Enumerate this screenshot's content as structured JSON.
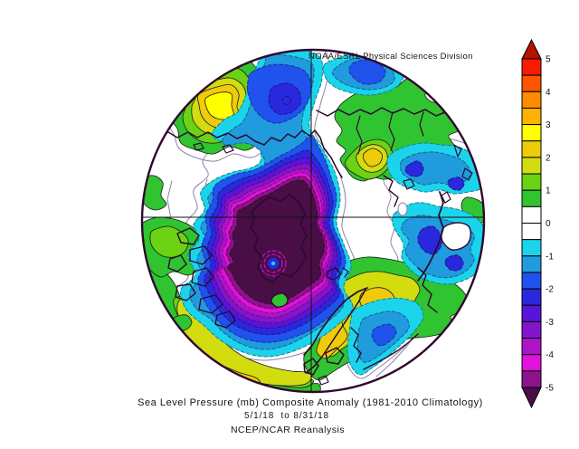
{
  "header": {
    "title": "NOAA/ESRL Physical Sciences Division"
  },
  "captions": {
    "line1": "Sea Level Pressure (mb) Composite Anomaly (1981-2010 Climatology)",
    "line2": "5/1/18  to 8/31/18",
    "line3": "NCEP/NCAR Reanalysis"
  },
  "colorbar": {
    "min": -5,
    "max": 5,
    "step": 0.5,
    "tick_labels": [
      "5",
      "4",
      "3",
      "2",
      "1",
      "0",
      "-1",
      "-2",
      "-3",
      "-4",
      "-5"
    ],
    "cells": [
      "c1",
      "c2",
      "c3",
      "c4",
      "c5",
      "c6",
      "c7",
      "c8",
      "c9",
      "c10",
      "c11",
      "c12",
      "c13",
      "c14",
      "c15",
      "c16",
      "c17",
      "c18",
      "c19",
      "c20"
    ],
    "arrow_top": "#B41400",
    "arrow_bottom": "#4A0E46"
  },
  "palette": {
    "c1": "#F81B00",
    "c2": "#FF5400",
    "c3": "#FF8C00",
    "c4": "#FFB200",
    "c5": "#FFFF00",
    "c6": "#EFCB0A",
    "c7": "#D2DC0F",
    "c8": "#6CD214",
    "c9": "#30C430",
    "c10": "#FFFFFF",
    "c11": "#FFFFFF",
    "c12": "#1CD3EC",
    "c13": "#209CDE",
    "c14": "#2052EE",
    "c15": "#2A28DC",
    "c16": "#5A14D8",
    "c17": "#8414CC",
    "c18": "#AC14C8",
    "c19": "#E012DC",
    "c20": "#8E128A",
    "core": "#4A0E46",
    "white": "#FFFFFF",
    "coast": "#2A0A2E",
    "rim": "#30062E",
    "contour_neutral": "#9080A8",
    "contour_positive": "#1A1A1A",
    "crosshair": "#101010",
    "text": "#141414"
  },
  "chart_data": {
    "type": "filled-contour-map",
    "projection": "north polar stereographic",
    "variable": "Sea Level Pressure composite anomaly (mb)",
    "period": "5/1/18 to 8/31/18",
    "climatology": "1981-2010",
    "source": "NCEP/NCAR Reanalysis",
    "contour_interval_mb": 0.5,
    "colorbar_range": [
      -5,
      5
    ],
    "colorbar_ticks": [
      5,
      4,
      3,
      2,
      1,
      0,
      -1,
      -2,
      -3,
      -4,
      -5
    ],
    "anomaly_centers": [
      {
        "region": "central Arctic Ocean (map center-left)",
        "value_mb": -5.5
      },
      {
        "region": "Bering Strait tongue at top of map",
        "value_mb": -2.5
      },
      {
        "region": "top-right rim lobe",
        "value_mb": -2.5
      },
      {
        "region": "Kara/Barents seas (right-side cyan blobs)",
        "value_mb": -2.25
      },
      {
        "region": "north of Alaska (upper-left yellow blob)",
        "value_mb": 2.75
      },
      {
        "region": "Siberia green ridge with gold core (upper right)",
        "value_mb": 2.25
      },
      {
        "region": "eastern Europe gold core (lower right)",
        "value_mb": 2.25
      },
      {
        "region": "North Atlantic gold band (bottom-left arc)",
        "value_mb": 2.25
      }
    ]
  }
}
